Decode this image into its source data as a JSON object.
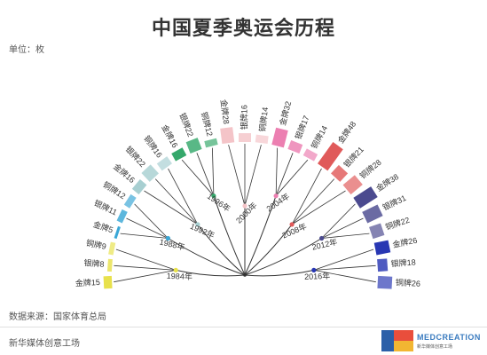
{
  "title": "中国夏季奥运会历程",
  "unit": "单位：枚",
  "source": "数据来源：国家体育总局",
  "footer": "新华媒体创意工场",
  "logo": {
    "text": "MEDCREATION",
    "sub": "新华媒体创意工场"
  },
  "colors": {
    "1984": "#e8e14c",
    "1988": "#3aa7d6",
    "1992": "#a7cfd1",
    "1996": "#35a86b",
    "2000": "#f4c4c8",
    "2004": "#ec7fb1",
    "2008": "#e05a5a",
    "2012": "#4b4a8f",
    "2016": "#2837b3"
  },
  "chart_data": {
    "type": "radial-bar",
    "title": "中国夏季奥运会历程",
    "unit": "单位：枚",
    "medals": [
      "金牌",
      "银牌",
      "铜牌"
    ],
    "series": [
      {
        "year": "1984年",
        "gold": 15,
        "silver": 8,
        "bronze": 9
      },
      {
        "year": "1988年",
        "gold": 5,
        "silver": 11,
        "bronze": 12
      },
      {
        "year": "1992年",
        "gold": 16,
        "silver": 22,
        "bronze": 16
      },
      {
        "year": "1996年",
        "gold": 16,
        "silver": 22,
        "bronze": 12
      },
      {
        "year": "2000年",
        "gold": 28,
        "silver": 16,
        "bronze": 14
      },
      {
        "year": "2004年",
        "gold": 32,
        "silver": 17,
        "bronze": 14
      },
      {
        "year": "2008年",
        "gold": 48,
        "silver": 21,
        "bronze": 28
      },
      {
        "year": "2012年",
        "gold": 38,
        "silver": 31,
        "bronze": 22
      },
      {
        "year": "2016年",
        "gold": 26,
        "silver": 18,
        "bronze": 26
      }
    ]
  }
}
